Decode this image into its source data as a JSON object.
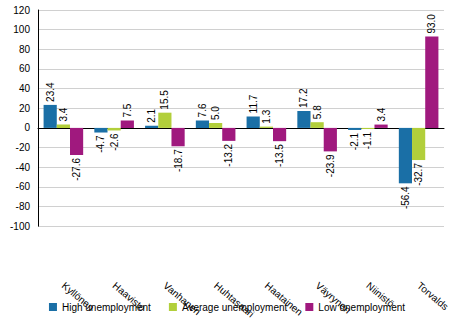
{
  "chart_data": {
    "type": "bar",
    "categories": [
      "Kyllönen",
      "Haavisto",
      "Vanhanen",
      "Huhtasaari",
      "Haatainen",
      "Väyrynen",
      "Niinistö",
      "Torvalds"
    ],
    "series": [
      {
        "name": "High unemployment",
        "color": "#1a6fa6",
        "values": [
          23.4,
          -4.7,
          2.1,
          7.6,
          11.7,
          17.2,
          -2.1,
          -56.4
        ],
        "value_labels": [
          "23.4",
          "-4.7",
          "2.1",
          "7.6",
          "11.7",
          "17.2",
          "-2.1",
          "-56.4"
        ]
      },
      {
        "name": "Average unemployment",
        "color": "#b2cf3b",
        "values": [
          3.4,
          -2.6,
          15.5,
          5.0,
          1.3,
          5.8,
          -1.1,
          -32.7
        ],
        "value_labels": [
          "3.4",
          "-2.6",
          "15.5",
          "5.0",
          "1.3",
          "5.8",
          "-1.1",
          "-32.7"
        ]
      },
      {
        "name": "Low unemployment",
        "color": "#a0197e",
        "values": [
          -27.6,
          7.5,
          -18.7,
          -13.2,
          -13.5,
          -23.9,
          3.4,
          93.0
        ],
        "value_labels": [
          "-27.6",
          "7.5",
          "-18.7",
          "-13.2",
          "-13.5",
          "-23.9",
          "3.4",
          "93.0"
        ]
      }
    ],
    "ylim": [
      -100,
      120
    ],
    "yticks": [
      -100,
      -80,
      -60,
      -40,
      -20,
      0,
      20,
      40,
      60,
      80,
      100,
      120
    ],
    "grid": true,
    "legend": "bottom",
    "data_labels": true
  }
}
